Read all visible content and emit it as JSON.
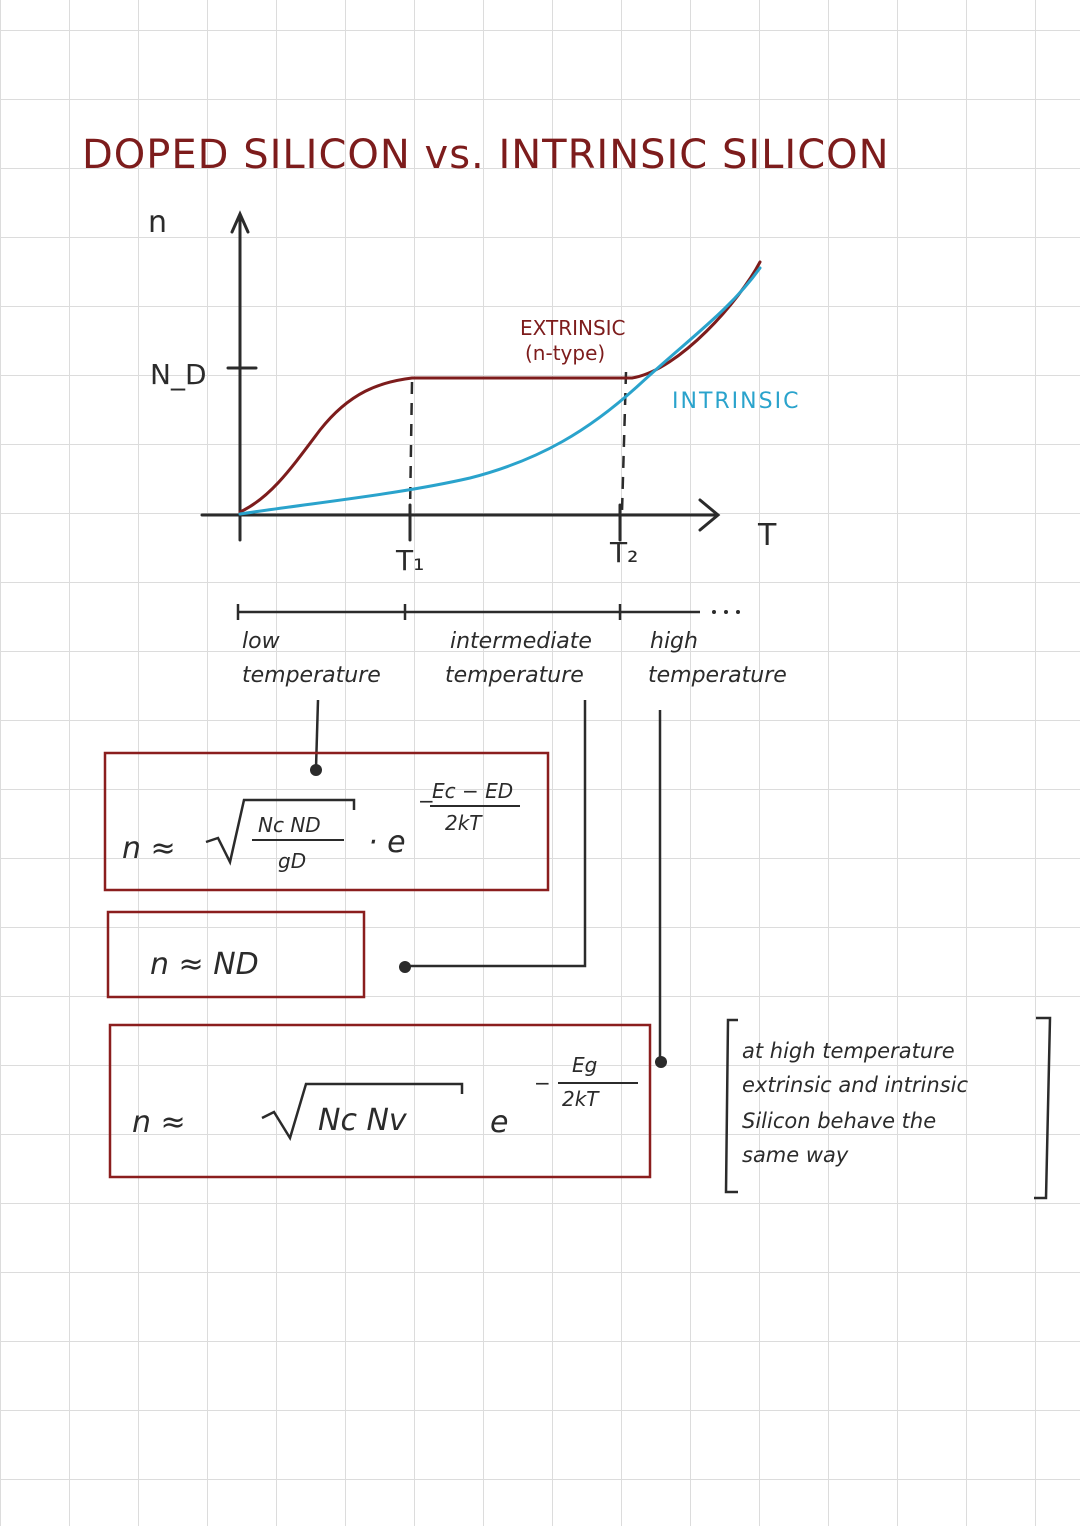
{
  "title": "DOPED SILICON vs. INTRINSIC SILICON",
  "colors": {
    "extrinsic_curve": "#7d1c1c",
    "intrinsic_curve": "#2aa3cc",
    "ink": "#2b2b2b",
    "box_border": "#8b1e1e"
  },
  "graph": {
    "y_axis_label": "n",
    "x_axis_label": "T",
    "nd_tick_label": "N_D",
    "t1_label": "T₁",
    "t2_label": "T₂",
    "extrinsic_label_line1": "EXTRINSIC",
    "extrinsic_label_line2": "(n-type)",
    "intrinsic_label": "INTRINSIC"
  },
  "ranges": {
    "low_line1": "low",
    "low_line2": "temperature",
    "mid_line1": "intermediate",
    "mid_line2": "temperature",
    "high_line1": "high",
    "high_line2": "temperature"
  },
  "formulas": {
    "low": {
      "lhs": "n ≈",
      "numerator": "Nc ND",
      "denominator": "gD",
      "dot_e": "· e",
      "exp_sign": "−",
      "exp_num": "Ec − ED",
      "exp_den": "2kT"
    },
    "mid": {
      "expr": "n ≈ ND"
    },
    "high": {
      "lhs": "n ≈",
      "root": "Nc Nv",
      "e": "e",
      "exp_sign": "−",
      "exp_num": "Eg",
      "exp_den": "2kT"
    }
  },
  "note": {
    "line1": "at high temperature",
    "line2": "extrinsic and intrinsic",
    "line3": "Silicon behave the",
    "line4": "same way"
  }
}
